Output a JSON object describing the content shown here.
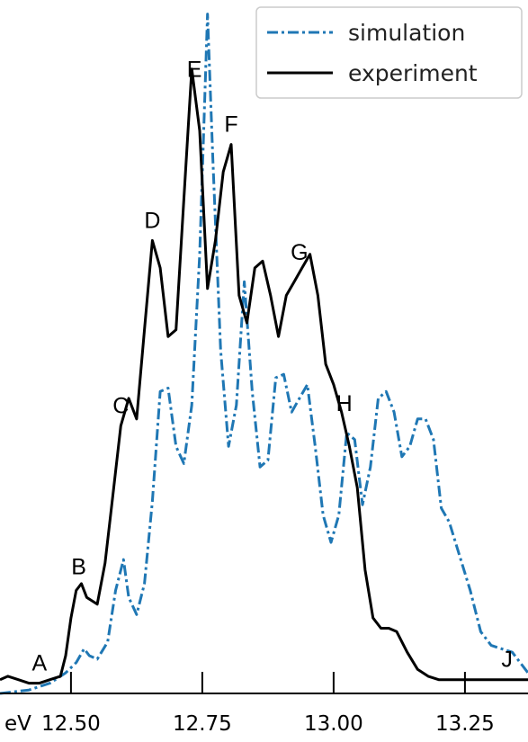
{
  "chart_data": {
    "type": "line",
    "xlabel": "eV",
    "ylabel": "",
    "title": "",
    "xlim": [
      12.365,
      13.37
    ],
    "ylim": [
      0,
      1.0
    ],
    "xticks": [
      12.5,
      12.75,
      13.0,
      13.25
    ],
    "xtick_labels": [
      "12.50",
      "12.75",
      "13.00",
      "13.25"
    ],
    "legend": {
      "position": "top-right",
      "entries": [
        "simulation",
        "experiment"
      ]
    },
    "grid": false,
    "series": [
      {
        "name": "simulation",
        "color": "#1f77b4",
        "style": "dash-dot",
        "x": [
          12.365,
          12.42,
          12.46,
          12.49,
          12.51,
          12.525,
          12.535,
          12.55,
          12.57,
          12.585,
          12.6,
          12.61,
          12.625,
          12.64,
          12.655,
          12.67,
          12.685,
          12.7,
          12.715,
          12.73,
          12.745,
          12.76,
          12.77,
          12.785,
          12.8,
          12.815,
          12.83,
          12.845,
          12.86,
          12.875,
          12.89,
          12.905,
          12.92,
          12.935,
          12.95,
          12.965,
          12.98,
          12.995,
          13.01,
          13.025,
          13.04,
          13.055,
          13.07,
          13.085,
          13.1,
          13.115,
          13.13,
          13.145,
          13.16,
          13.175,
          13.19,
          13.205,
          13.22,
          13.24,
          13.26,
          13.28,
          13.3,
          13.32,
          13.34,
          13.37
        ],
        "y": [
          0.0,
          0.005,
          0.015,
          0.03,
          0.045,
          0.065,
          0.055,
          0.05,
          0.075,
          0.15,
          0.195,
          0.14,
          0.115,
          0.16,
          0.28,
          0.44,
          0.445,
          0.36,
          0.335,
          0.42,
          0.64,
          0.99,
          0.78,
          0.5,
          0.36,
          0.42,
          0.6,
          0.44,
          0.33,
          0.34,
          0.46,
          0.465,
          0.41,
          0.43,
          0.45,
          0.36,
          0.26,
          0.22,
          0.26,
          0.38,
          0.37,
          0.275,
          0.33,
          0.43,
          0.44,
          0.41,
          0.345,
          0.36,
          0.4,
          0.4,
          0.37,
          0.27,
          0.25,
          0.2,
          0.15,
          0.09,
          0.07,
          0.065,
          0.06,
          0.03
        ]
      },
      {
        "name": "experiment",
        "color": "#000000",
        "style": "solid",
        "x": [
          12.365,
          12.38,
          12.4,
          12.42,
          12.44,
          12.46,
          12.48,
          12.49,
          12.5,
          12.51,
          12.52,
          12.53,
          12.55,
          12.565,
          12.58,
          12.595,
          12.61,
          12.625,
          12.64,
          12.655,
          12.67,
          12.685,
          12.7,
          12.715,
          12.73,
          12.745,
          12.76,
          12.775,
          12.79,
          12.805,
          12.82,
          12.835,
          12.85,
          12.865,
          12.88,
          12.895,
          12.91,
          12.925,
          12.94,
          12.955,
          12.97,
          12.985,
          13.0,
          13.015,
          13.03,
          13.045,
          13.06,
          13.075,
          13.09,
          13.105,
          13.12,
          13.14,
          13.16,
          13.18,
          13.2,
          13.22,
          13.25,
          13.28,
          13.31,
          13.34,
          13.37
        ],
        "y": [
          0.02,
          0.025,
          0.02,
          0.015,
          0.015,
          0.02,
          0.025,
          0.055,
          0.11,
          0.15,
          0.16,
          0.14,
          0.13,
          0.19,
          0.29,
          0.39,
          0.43,
          0.4,
          0.53,
          0.66,
          0.62,
          0.52,
          0.53,
          0.72,
          0.91,
          0.82,
          0.59,
          0.66,
          0.76,
          0.8,
          0.58,
          0.54,
          0.62,
          0.63,
          0.58,
          0.52,
          0.58,
          0.6,
          0.62,
          0.64,
          0.58,
          0.48,
          0.45,
          0.41,
          0.36,
          0.3,
          0.18,
          0.11,
          0.095,
          0.095,
          0.09,
          0.06,
          0.035,
          0.025,
          0.02,
          0.02,
          0.02,
          0.02,
          0.02,
          0.02,
          0.02
        ]
      }
    ],
    "annotations": [
      {
        "text": "A",
        "x": 12.44
      },
      {
        "text": "B",
        "x": 12.515
      },
      {
        "text": "C",
        "x": 12.595
      },
      {
        "text": "D",
        "x": 12.655
      },
      {
        "text": "E",
        "x": 12.735
      },
      {
        "text": "F",
        "x": 12.805
      },
      {
        "text": "G",
        "x": 12.935
      },
      {
        "text": "H",
        "x": 13.02
      },
      {
        "text": "J",
        "x": 13.33
      }
    ]
  }
}
